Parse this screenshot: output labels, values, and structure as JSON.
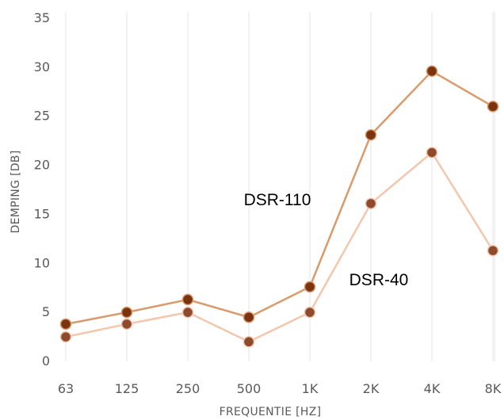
{
  "chart_data": {
    "type": "line",
    "title": "",
    "xlabel": "FREQUENTIE [HZ]",
    "ylabel": "DEMPING [DB]",
    "ylim": [
      0,
      35
    ],
    "yticks": [
      0,
      5,
      10,
      15,
      20,
      25,
      30,
      35
    ],
    "categories": [
      "63",
      "125",
      "250",
      "500",
      "1K",
      "2K",
      "4K",
      "8K"
    ],
    "grid": "vertical",
    "legend": "none",
    "series": [
      {
        "name": "DSR-110",
        "color": "#d99a6c",
        "marker_color": "#7b3410",
        "values": [
          3.8,
          5.0,
          6.3,
          4.5,
          7.6,
          23.1,
          29.6,
          26.0
        ]
      },
      {
        "name": "DSR-40",
        "color": "#f4c6ad",
        "marker_color": "#8e4a2c",
        "values": [
          2.5,
          3.8,
          5.0,
          2.0,
          5.0,
          16.1,
          21.3,
          11.3
        ]
      }
    ]
  }
}
